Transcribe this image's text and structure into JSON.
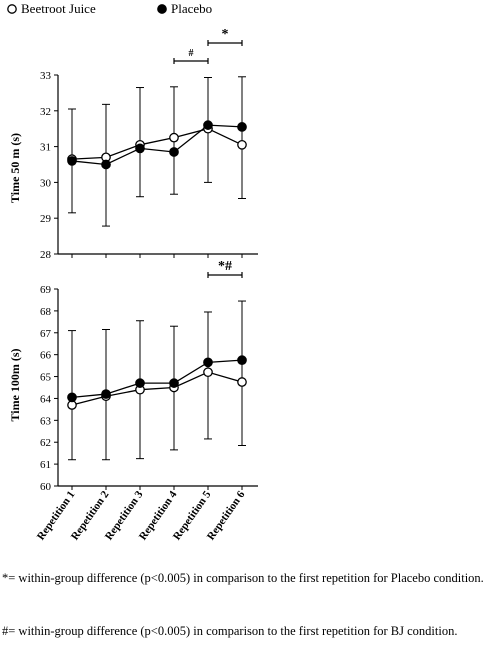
{
  "legend": [
    {
      "label": "Beetroot Juice",
      "marker": "open-circle"
    },
    {
      "label": "Placebo",
      "marker": "filled-circle"
    }
  ],
  "chart_data": [
    {
      "type": "line",
      "ylabel": "Time 50 m (s)",
      "ylim": [
        28,
        33
      ],
      "yticks": [
        28,
        29,
        30,
        31,
        32,
        33
      ],
      "categories": [
        "Repetition 1",
        "Repetition 2",
        "Repetition 3",
        "Repetition 4",
        "Repetition 5",
        "Repetition 6"
      ],
      "series": [
        {
          "name": "Beetroot Juice",
          "marker": "open-circle",
          "values": [
            30.65,
            30.7,
            31.05,
            31.25,
            31.5,
            31.05
          ]
        },
        {
          "name": "Placebo",
          "marker": "filled-circle",
          "values": [
            30.6,
            30.5,
            30.95,
            30.85,
            31.6,
            31.55
          ]
        }
      ],
      "error_bars": {
        "upper": [
          32.05,
          32.18,
          32.65,
          32.67,
          32.93,
          32.95
        ],
        "lower": [
          29.15,
          28.78,
          29.6,
          29.67,
          30.0,
          29.55
        ]
      },
      "annotations": [
        {
          "text": "#",
          "from": "Repetition 4",
          "to": "Repetition 5"
        },
        {
          "text": "*",
          "from": "Repetition 5",
          "to": "Repetition 6"
        }
      ]
    },
    {
      "type": "line",
      "ylabel": "Time 100m (s)",
      "ylim": [
        60,
        69
      ],
      "yticks": [
        60,
        61,
        62,
        63,
        64,
        65,
        66,
        67,
        68,
        69
      ],
      "categories": [
        "Repetition 1",
        "Repetition 2",
        "Repetition 3",
        "Repetition 4",
        "Repetition 5",
        "Repetition 6"
      ],
      "series": [
        {
          "name": "Beetroot Juice",
          "marker": "open-circle",
          "values": [
            63.7,
            64.1,
            64.4,
            64.5,
            65.2,
            64.75
          ]
        },
        {
          "name": "Placebo",
          "marker": "filled-circle",
          "values": [
            64.05,
            64.2,
            64.7,
            64.7,
            65.65,
            65.75
          ]
        }
      ],
      "error_bars": {
        "upper": [
          67.1,
          67.15,
          67.55,
          67.3,
          67.95,
          68.45
        ],
        "lower": [
          61.2,
          61.2,
          61.25,
          61.65,
          62.15,
          61.85
        ]
      },
      "annotations": [
        {
          "text": "*#",
          "from": "Repetition 5",
          "to": "Repetition 6"
        }
      ]
    }
  ],
  "footnotes": [
    "*= within-group difference (p<0.005) in comparison to the first repetition for Placebo condition.",
    "#= within-group difference (p<0.005) in comparison to the first repetition for BJ condition."
  ]
}
